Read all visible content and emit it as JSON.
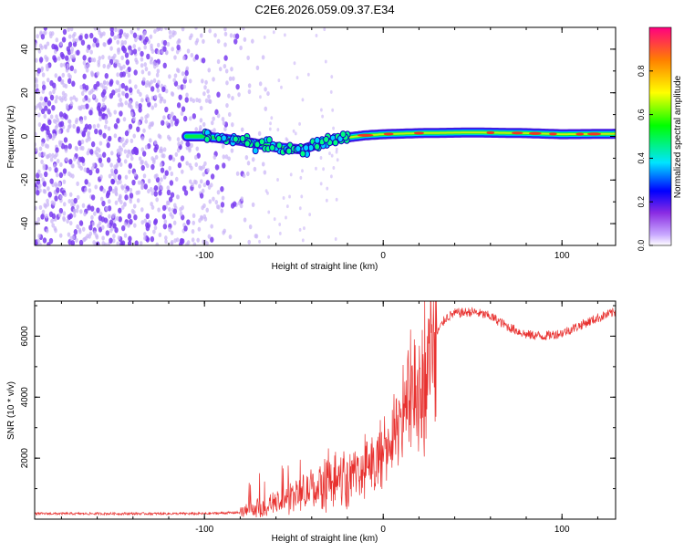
{
  "title": "C2E6.2026.059.09.37.E34",
  "colors": {
    "snr_line": "#e8312f",
    "speckle": "#7a3cf0",
    "speckle_light": "#c9b4f7",
    "background": "#ffffff"
  },
  "chart_data": [
    {
      "type": "heatmap",
      "name": "spectrogram",
      "xlabel": "Height of straight line (km)",
      "ylabel": "Frequency (Hz)",
      "xlim": [
        -195,
        130
      ],
      "ylim": [
        -50,
        50
      ],
      "x_ticks": [
        -100,
        0,
        100
      ],
      "x_tick_labels": [
        "-100",
        "0",
        "100"
      ],
      "y_ticks": [
        -40,
        -20,
        0,
        20,
        40
      ],
      "y_tick_labels": [
        "-40",
        "-20",
        "0",
        "20",
        "40"
      ],
      "colorbar": {
        "label": "Normalized spectral amplitude",
        "range": [
          0,
          1
        ],
        "ticks": [
          0.0,
          0.2,
          0.4,
          0.6,
          0.8
        ],
        "tick_labels": [
          "0.0",
          "0.2",
          "0.4",
          "0.6",
          "0.8"
        ]
      },
      "signal_trace": {
        "x": [
          -100,
          -80,
          -60,
          -45,
          -35,
          -25,
          -10,
          0,
          20,
          50,
          80,
          100,
          130
        ],
        "y": [
          0,
          -2,
          -5,
          -6,
          -3,
          -1,
          0.5,
          1,
          1.5,
          1.8,
          1.5,
          1,
          1.2
        ]
      },
      "noise_extent_x": [
        -195,
        -70
      ]
    },
    {
      "type": "line",
      "name": "snr",
      "xlabel": "Height of straight line (km)",
      "ylabel": "SNR (10 * v/v)",
      "xlim": [
        -195,
        130
      ],
      "ylim": [
        0,
        7150
      ],
      "x_ticks": [
        -100,
        0,
        100
      ],
      "x_tick_labels": [
        "-100",
        "0",
        "100"
      ],
      "y_ticks": [
        2000,
        4000,
        6000
      ],
      "y_tick_labels": [
        "2000",
        "4000",
        "6000"
      ],
      "envelope": {
        "x": [
          -195,
          -100,
          -80,
          -70,
          -60,
          -50,
          -40,
          -30,
          -20,
          -10,
          0,
          10,
          20,
          25,
          30,
          35,
          40,
          50,
          60,
          70,
          80,
          90,
          100,
          110,
          120,
          130
        ],
        "y": [
          180,
          180,
          220,
          320,
          500,
          750,
          950,
          1150,
          1350,
          1650,
          2100,
          3100,
          4300,
          5200,
          6100,
          6600,
          6750,
          6800,
          6650,
          6300,
          6050,
          6000,
          6100,
          6350,
          6600,
          6800
        ]
      }
    }
  ]
}
